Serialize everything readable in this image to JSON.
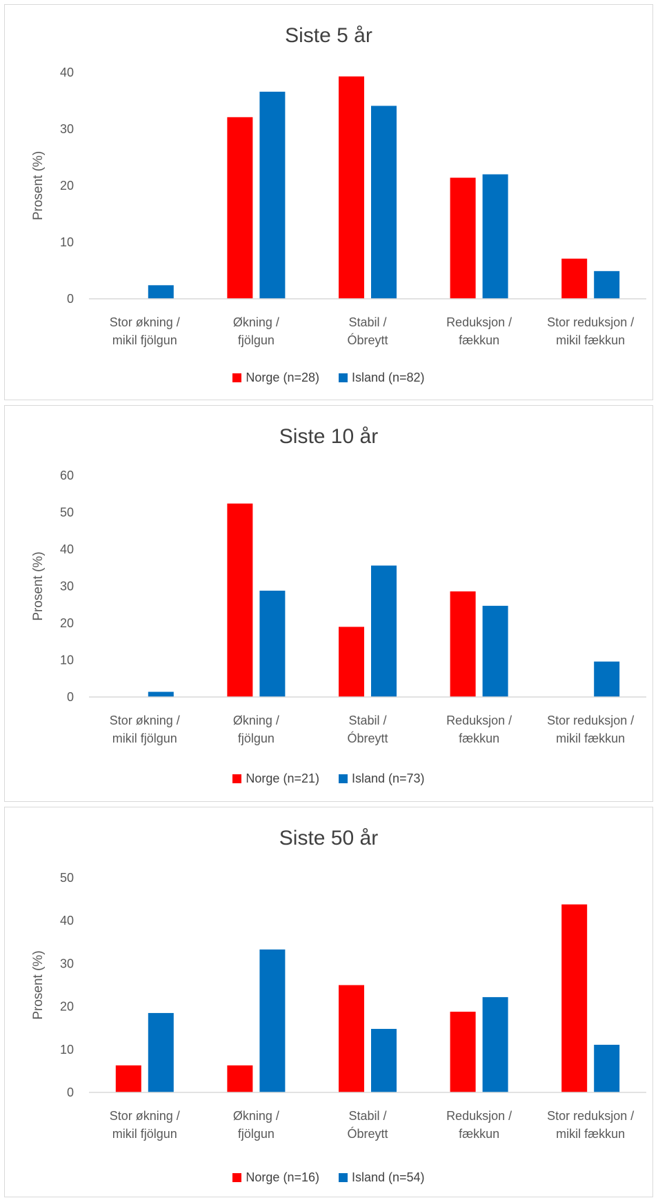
{
  "chart_data": [
    {
      "type": "bar",
      "title": "Siste 5 år",
      "ylabel": "Prosent (%)",
      "xlabel": "",
      "ylim": [
        0,
        40
      ],
      "yticks": [
        0,
        10,
        20,
        30,
        40
      ],
      "categories": [
        [
          "Stor økning /",
          "mikil fjölgun"
        ],
        [
          "Økning /",
          "fjölgun"
        ],
        [
          "Stabil /",
          "Óbreytt"
        ],
        [
          "Reduksjon /",
          "fækkun"
        ],
        [
          "Stor reduksjon /",
          "mikil fækkun"
        ]
      ],
      "series": [
        {
          "name": "Norge (n=28)",
          "color": "#ff0000",
          "values": [
            0,
            32.1,
            39.3,
            21.4,
            7.1
          ]
        },
        {
          "name": "Island (n=82)",
          "color": "#0070c0",
          "values": [
            2.4,
            36.6,
            34.1,
            22.0,
            4.9
          ]
        }
      ],
      "grid": false,
      "legend": "bottom"
    },
    {
      "type": "bar",
      "title": "Siste 10 år",
      "ylabel": "Prosent (%)",
      "xlabel": "",
      "ylim": [
        0,
        60
      ],
      "yticks": [
        0,
        10,
        20,
        30,
        40,
        50,
        60
      ],
      "categories": [
        [
          "Stor økning /",
          "mikil fjölgun"
        ],
        [
          "Økning /",
          "fjölgun"
        ],
        [
          "Stabil /",
          "Óbreytt"
        ],
        [
          "Reduksjon /",
          "fækkun"
        ],
        [
          "Stor reduksjon /",
          "mikil fækkun"
        ]
      ],
      "series": [
        {
          "name": "Norge (n=21)",
          "color": "#ff0000",
          "values": [
            0,
            52.4,
            19.0,
            28.6,
            0
          ]
        },
        {
          "name": "Island (n=73)",
          "color": "#0070c0",
          "values": [
            1.4,
            28.8,
            35.6,
            24.7,
            9.6
          ]
        }
      ],
      "grid": false,
      "legend": "bottom"
    },
    {
      "type": "bar",
      "title": "Siste 50 år",
      "ylabel": "Prosent (%)",
      "xlabel": "",
      "ylim": [
        0,
        50
      ],
      "yticks": [
        0,
        10,
        20,
        30,
        40,
        50
      ],
      "categories": [
        [
          "Stor økning /",
          "mikil fjölgun"
        ],
        [
          "Økning /",
          "fjölgun"
        ],
        [
          "Stabil /",
          "Óbreytt"
        ],
        [
          "Reduksjon /",
          "fækkun"
        ],
        [
          "Stor reduksjon /",
          "mikil fækkun"
        ]
      ],
      "series": [
        {
          "name": "Norge (n=16)",
          "color": "#ff0000",
          "values": [
            6.3,
            6.3,
            25.0,
            18.8,
            43.8
          ]
        },
        {
          "name": "Island (n=54)",
          "color": "#0070c0",
          "values": [
            18.5,
            33.3,
            14.8,
            22.2,
            11.1
          ]
        }
      ],
      "grid": false,
      "legend": "bottom"
    }
  ]
}
